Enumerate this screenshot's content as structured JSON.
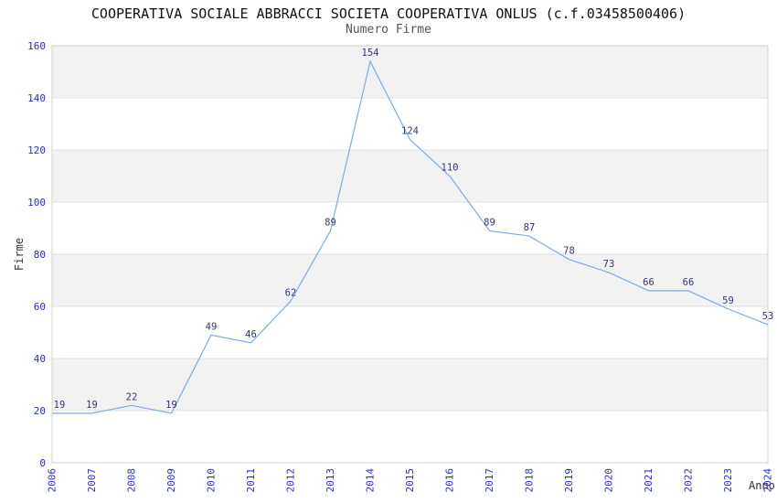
{
  "header": {
    "title": "COOPERATIVA SOCIALE ABBRACCI SOCIETA COOPERATIVA ONLUS (c.f.03458500406)",
    "subtitle": "Numero Firme"
  },
  "axes": {
    "y_label": "Firme",
    "x_label": "Anno"
  },
  "chart_data": {
    "type": "line",
    "title": "COOPERATIVA SOCIALE ABBRACCI SOCIETA COOPERATIVA ONLUS (c.f.03458500406)",
    "subtitle": "Numero Firme",
    "categories": [
      "2006",
      "2007",
      "2008",
      "2009",
      "2010",
      "2011",
      "2012",
      "2013",
      "2014",
      "2015",
      "2016",
      "2017",
      "2018",
      "2019",
      "2020",
      "2021",
      "2022",
      "2023",
      "2024"
    ],
    "values": [
      19,
      19,
      22,
      19,
      49,
      46,
      62,
      89,
      154,
      124,
      110,
      89,
      87,
      78,
      73,
      66,
      66,
      59,
      53
    ],
    "xlabel": "Anno",
    "ylabel": "Firme",
    "ylim": [
      0,
      160
    ],
    "ytick_step": 20,
    "yticks": [
      0,
      20,
      40,
      60,
      80,
      100,
      120,
      140,
      160
    ],
    "grid": "horizontal-bands",
    "legend": "none",
    "colors": {
      "line": "#7aade4",
      "tick_labels": "#2b2bdd",
      "point_labels": "#333377",
      "band": "#f2f2f2",
      "gridline": "#e0e0e0",
      "plot_border": "#d0d0d0",
      "title": "#111111",
      "subtitle": "#555555",
      "axis_titles": "#333333"
    }
  }
}
